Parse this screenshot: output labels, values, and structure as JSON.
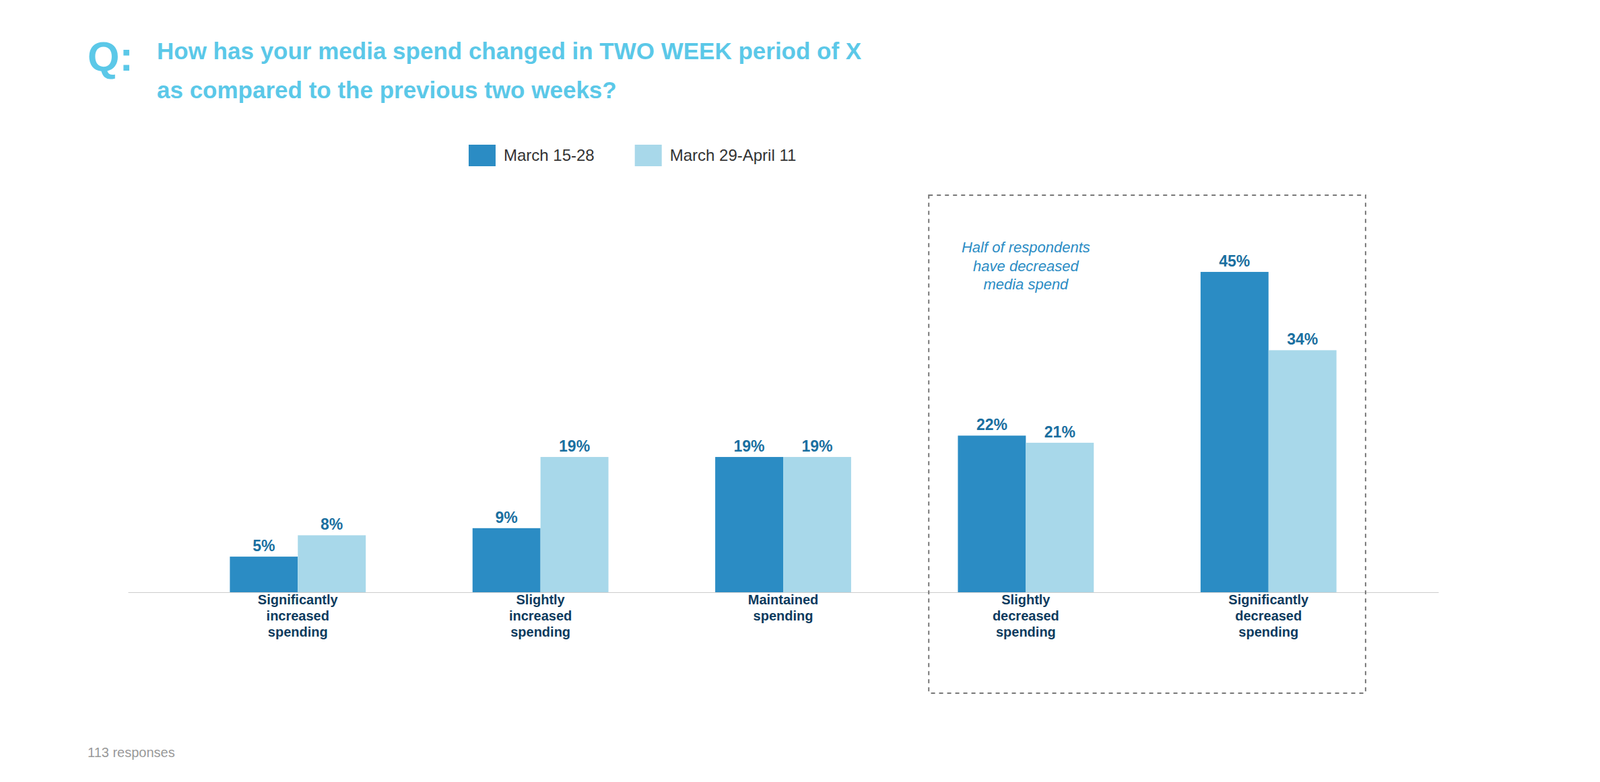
{
  "chart_data": {
    "type": "bar",
    "title": "How has your media spend changed in TWO WEEK period of X\nas compared to the previous two weeks?",
    "annotations": [
      "Q:",
      "Half of respondents\nhave decreased\nmedia spend",
      "113 responses"
    ],
    "categories": [
      "Significantly\nincreased\nspending",
      "Slightly\nincreased\nspending",
      "Maintained\nspending",
      "Slightly\ndecreased\nspending",
      "Significantly\ndecreased\nspending"
    ],
    "series": [
      {
        "name": "March 15-28",
        "color": "#2B8CC4",
        "values": [
          5,
          9,
          19,
          22,
          45
        ],
        "value_labels": [
          "5%",
          "9%",
          "19%",
          "22%",
          "45%"
        ]
      },
      {
        "name": "March 29-April 11",
        "color": "#A8D8EA",
        "values": [
          8,
          19,
          19,
          21,
          34
        ],
        "value_labels": [
          "8%",
          "19%",
          "19%",
          "21%",
          "34%"
        ]
      }
    ],
    "ylim": [
      0,
      52
    ],
    "tick_labels": "x",
    "data_labels": true,
    "grid": false,
    "legend": "top"
  }
}
